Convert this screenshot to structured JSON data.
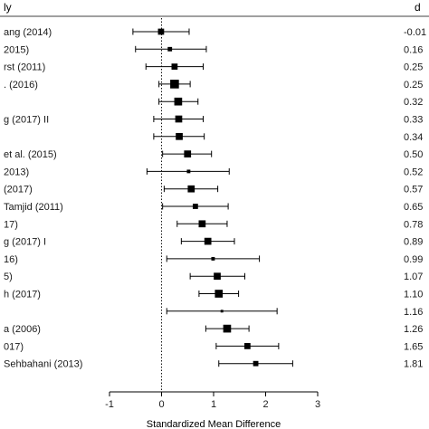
{
  "chart_data": {
    "type": "forest",
    "column_headers": {
      "study": "ly",
      "effect": "d"
    },
    "xlabel": "Standardized Mean Difference",
    "xlim": [
      -1,
      3
    ],
    "x_ticks": [
      "-1",
      "0",
      "1",
      "2",
      "3"
    ],
    "reference_line": 0,
    "rows": [
      {
        "label": "ang (2014)",
        "d_text": "-0.01",
        "d": -0.01,
        "ci": [
          -0.55,
          0.53
        ],
        "weight": 5
      },
      {
        "label": "2015)",
        "d_text": "0.16",
        "d": 0.16,
        "ci": [
          -0.5,
          0.86
        ],
        "weight": 3
      },
      {
        "label": "rst (2011)",
        "d_text": "0.25",
        "d": 0.25,
        "ci": [
          -0.3,
          0.8
        ],
        "weight": 5
      },
      {
        "label": ". (2016)",
        "d_text": "0.25",
        "d": 0.25,
        "ci": [
          -0.05,
          0.55
        ],
        "weight": 8
      },
      {
        "label": "",
        "d_text": "0.32",
        "d": 0.32,
        "ci": [
          -0.05,
          0.7
        ],
        "weight": 7
      },
      {
        "label": "g (2017) II",
        "d_text": "0.33",
        "d": 0.33,
        "ci": [
          -0.15,
          0.8
        ],
        "weight": 6
      },
      {
        "label": "",
        "d_text": "0.34",
        "d": 0.34,
        "ci": [
          -0.15,
          0.82
        ],
        "weight": 6
      },
      {
        "label": "et al. (2015)",
        "d_text": "0.50",
        "d": 0.5,
        "ci": [
          0.02,
          0.96
        ],
        "weight": 6
      },
      {
        "label": "2013)",
        "d_text": "0.52",
        "d": 0.52,
        "ci": [
          -0.28,
          1.3
        ],
        "weight": 2
      },
      {
        "label": "(2017)",
        "d_text": "0.57",
        "d": 0.57,
        "ci": [
          0.05,
          1.08
        ],
        "weight": 6
      },
      {
        "label": "Tamjid (2011)",
        "d_text": "0.65",
        "d": 0.65,
        "ci": [
          0.02,
          1.28
        ],
        "weight": 4
      },
      {
        "label": "17)",
        "d_text": "0.78",
        "d": 0.78,
        "ci": [
          0.3,
          1.26
        ],
        "weight": 6
      },
      {
        "label": "g (2017) I",
        "d_text": "0.89",
        "d": 0.89,
        "ci": [
          0.38,
          1.4
        ],
        "weight": 6
      },
      {
        "label": "16)",
        "d_text": "0.99",
        "d": 0.99,
        "ci": [
          0.1,
          1.88
        ],
        "weight": 2
      },
      {
        "label": "5)",
        "d_text": "1.07",
        "d": 1.07,
        "ci": [
          0.55,
          1.6
        ],
        "weight": 6
      },
      {
        "label": "h (2017)",
        "d_text": "1.10",
        "d": 1.1,
        "ci": [
          0.72,
          1.48
        ],
        "weight": 7
      },
      {
        "label": "",
        "d_text": "1.16",
        "d": 1.16,
        "ci": [
          0.1,
          2.22
        ],
        "weight": 1
      },
      {
        "label": "a (2006)",
        "d_text": "1.26",
        "d": 1.26,
        "ci": [
          0.85,
          1.68
        ],
        "weight": 7
      },
      {
        "label": "017)",
        "d_text": "1.65",
        "d": 1.65,
        "ci": [
          1.05,
          2.25
        ],
        "weight": 5
      },
      {
        "label": "Sehbahani (2013)",
        "d_text": "1.81",
        "d": 1.81,
        "ci": [
          1.1,
          2.52
        ],
        "weight": 4
      }
    ],
    "colors": {
      "ink": "#000000",
      "text": "#1a1a1a"
    }
  }
}
